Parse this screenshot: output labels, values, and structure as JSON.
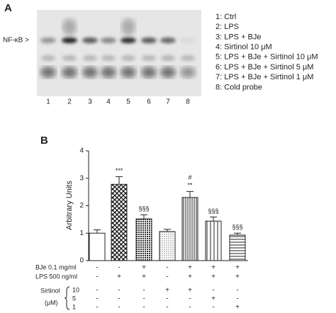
{
  "panel_a": {
    "label": "A",
    "marker": "NF-κB >",
    "lanes": [
      "1",
      "2",
      "3",
      "4",
      "5",
      "6",
      "7",
      "8"
    ],
    "legend": [
      "1: Ctrl",
      "2: LPS",
      "3: LPS + BJe",
      "4: Sirtinol 10 μM",
      "5: LPS + BJe + Sirtinol 10 μM",
      "6: LPS + BJe + Sirtinol 5 μM",
      "7: LPS + BJe + Sirtinol 1 μM",
      "8: Cold probe"
    ]
  },
  "chart_data": {
    "type": "bar",
    "label": "B",
    "y_label": "Arbitrary Units",
    "values": [
      1.0,
      2.78,
      1.52,
      1.06,
      2.3,
      1.44,
      0.93
    ],
    "errors": [
      0.12,
      0.28,
      0.15,
      0.08,
      0.22,
      0.15,
      0.07
    ],
    "patterns": [
      "none",
      "crosshatch",
      "dots-dense",
      "dots-light",
      "vlines-dense",
      "vlines",
      "hlines"
    ],
    "annotations": [
      [],
      [
        "***"
      ],
      [
        "§§§"
      ],
      [],
      [
        "**",
        "#"
      ],
      [
        "§§§"
      ],
      [
        "§§§"
      ]
    ],
    "ylim": [
      0,
      4
    ],
    "yticks": [
      0,
      1,
      2,
      3,
      4
    ],
    "treatments": [
      {
        "label": "BJe 0.1 mg/ml",
        "marks": [
          "-",
          "-",
          "+",
          "-",
          "+",
          "+",
          "+"
        ]
      },
      {
        "label": "LPS 500 ng/ml",
        "marks": [
          "-",
          "+",
          "+",
          "-",
          "+",
          "+",
          "+"
        ]
      }
    ],
    "sirtinol": {
      "label": "Sirtinol",
      "unit": "(μM)",
      "rows": [
        {
          "label": "10",
          "marks": [
            "-",
            "-",
            "-",
            "+",
            "+",
            "-",
            "-"
          ]
        },
        {
          "label": "5",
          "marks": [
            "-",
            "-",
            "-",
            "-",
            "-",
            "+",
            "-"
          ]
        },
        {
          "label": "1",
          "marks": [
            "-",
            "-",
            "-",
            "-",
            "-",
            "-",
            "+"
          ]
        }
      ]
    }
  }
}
